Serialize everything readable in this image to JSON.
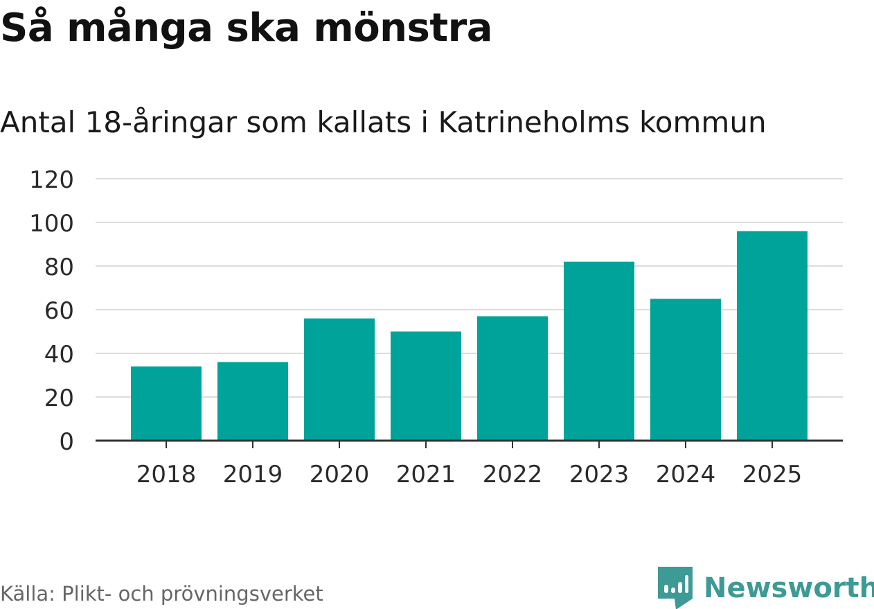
{
  "chart_data": {
    "type": "bar",
    "title": "Så många ska mönstra",
    "subtitle": "Antal 18-åringar som kallats i Katrineholms kommun",
    "categories": [
      "2018",
      "2019",
      "2020",
      "2021",
      "2022",
      "2023",
      "2024",
      "2025"
    ],
    "values": [
      34,
      36,
      56,
      50,
      57,
      82,
      65,
      96
    ],
    "xlabel": "",
    "ylabel": "",
    "ylim": [
      0,
      120
    ],
    "yticks": [
      0,
      20,
      40,
      60,
      80,
      100,
      120
    ],
    "grid": true,
    "bar_color": "#00a39a"
  },
  "footer": {
    "source": "Källa: Plikt- och prövningsverket",
    "brand": "Newsworthy",
    "brand_color": "#3d9a94",
    "brand_icon": "newsworthy-bar-chart-icon"
  }
}
